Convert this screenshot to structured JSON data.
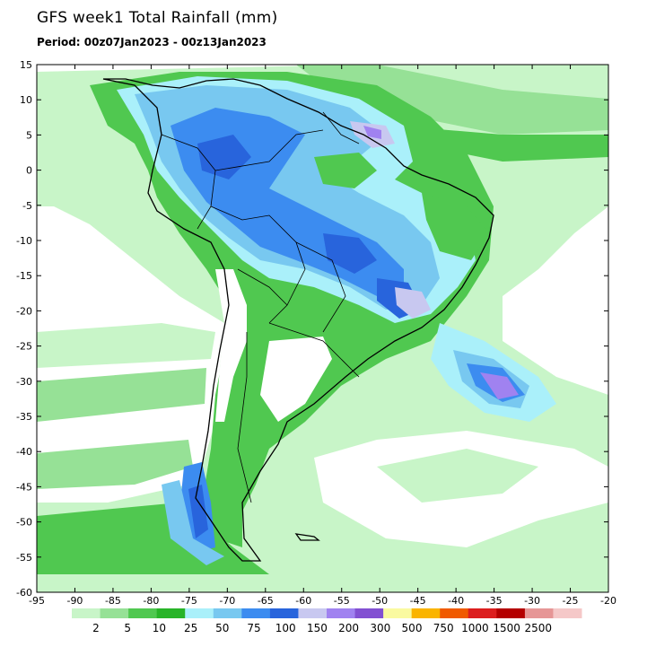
{
  "header": {
    "title": "GFS week1 Total Rainfall (mm)",
    "period": "Period: 00z07Jan2023 - 00z13Jan2023"
  },
  "map": {
    "lon_range": [
      -95,
      -20
    ],
    "lat_range": [
      -60,
      15
    ],
    "lon_ticks": [
      -95,
      -90,
      -85,
      -80,
      -75,
      -70,
      -65,
      -60,
      -55,
      -50,
      -45,
      -40,
      -35,
      -30,
      -25,
      -20
    ],
    "lat_ticks": [
      15,
      10,
      5,
      0,
      -5,
      -10,
      -15,
      -20,
      -25,
      -30,
      -35,
      -40,
      -45,
      -50,
      -55,
      -60
    ],
    "lon_tick_labels": [
      "-95",
      "-90",
      "-85",
      "-80",
      "-75",
      "-70",
      "-65",
      "-60",
      "-55",
      "-50",
      "-45",
      "-40",
      "-35",
      "-30",
      "-25",
      "-20"
    ],
    "lat_tick_labels": [
      "15",
      "10",
      "5",
      "0",
      "-5",
      "-10",
      "-15",
      "-20",
      "-25",
      "-30",
      "-35",
      "-40",
      "-45",
      "-50",
      "-55",
      "-60"
    ]
  },
  "colorbar": {
    "thresholds": [
      "2",
      "5",
      "10",
      "25",
      "50",
      "75",
      "100",
      "150",
      "200",
      "300",
      "500",
      "750",
      "1000",
      "1500",
      "2500"
    ],
    "colors": [
      "#c8f5c8",
      "#96e196",
      "#50c850",
      "#28b428",
      "#aaf0fa",
      "#78c8f0",
      "#3c8cf0",
      "#2864dc",
      "#c8c8f0",
      "#a082f0",
      "#8250d2",
      "#fafaa0",
      "#fab400",
      "#f05a00",
      "#dc1e1e",
      "#b40000",
      "#e69696",
      "#f5c8c8"
    ]
  },
  "palette": {
    "light_green": "#c8f5c8",
    "mid_green": "#96e196",
    "green": "#50c850",
    "dark_green": "#28b428",
    "light_blue": "#aaf0fa",
    "sky_blue": "#78c8f0",
    "blue": "#3c8cf0",
    "dark_blue": "#2864dc",
    "lavender": "#c8c8f0",
    "purple": "#a082f0"
  }
}
